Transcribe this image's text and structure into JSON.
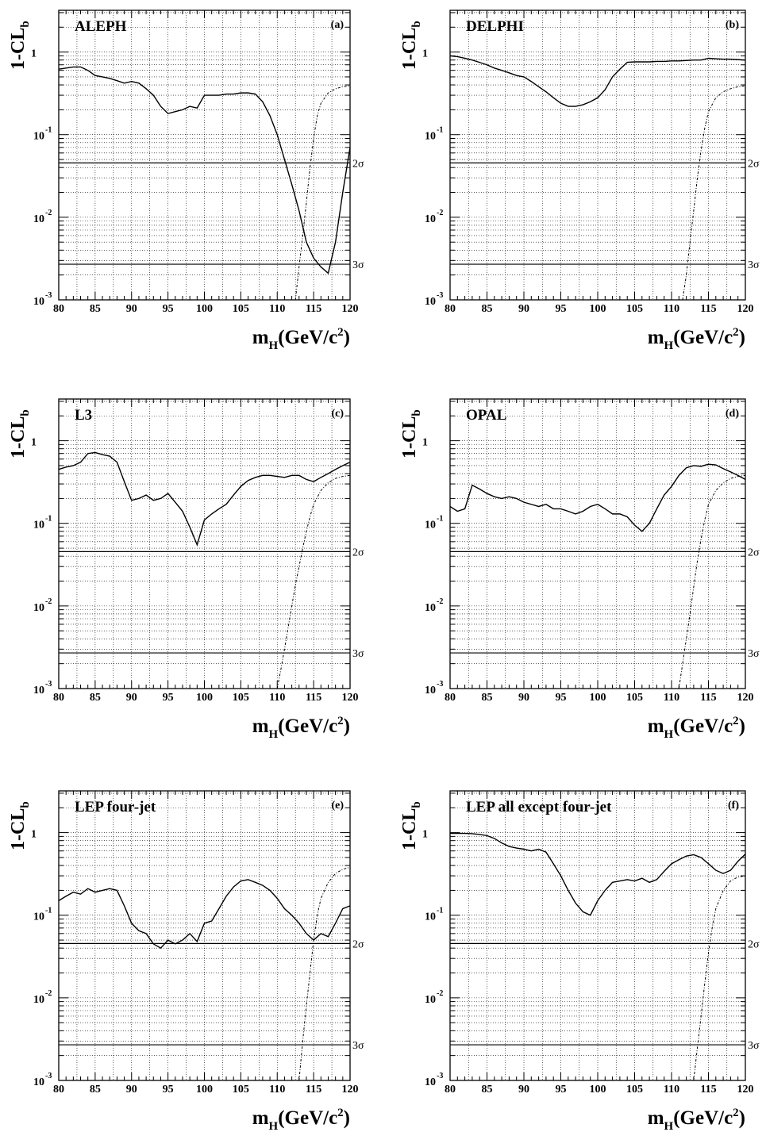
{
  "figure": {
    "shared_axes": {
      "xlim": [
        80,
        120
      ],
      "x_ticks": [
        80,
        85,
        90,
        95,
        100,
        105,
        110,
        115,
        120
      ],
      "x_tick_labels": [
        "80",
        "85",
        "90",
        "95",
        "100",
        "105",
        "110",
        "115",
        "120"
      ],
      "y_scale": "log",
      "ylim": [
        0.001,
        3.2
      ],
      "y_tick_labels": [
        {
          "value": 1,
          "base": "1",
          "exp": ""
        },
        {
          "value": 0.1,
          "base": "10",
          "exp": "-1"
        },
        {
          "value": 0.01,
          "base": "10",
          "exp": "-2"
        },
        {
          "value": 0.001,
          "base": "10",
          "exp": "-3"
        }
      ],
      "xlabel": {
        "main": "m",
        "sub": "H",
        "rest": "(GeV/c",
        "sup": "2",
        "end": ")"
      },
      "ylabel": {
        "main": "1-CL",
        "sub": "b"
      },
      "sigma_lines": [
        {
          "label": "2σ",
          "value": 0.0455
        },
        {
          "label": "3σ",
          "value": 0.0027
        }
      ]
    }
  },
  "chart_data": [
    {
      "type": "line",
      "title": "ALEPH",
      "panel_label": "(a)",
      "series": [
        {
          "style": "solid",
          "x": [
            80,
            81,
            82,
            83,
            84,
            85,
            86,
            87,
            88,
            89,
            90,
            91,
            92,
            93,
            94,
            95,
            96,
            97,
            98,
            99,
            100,
            101,
            102,
            103,
            104,
            105,
            106,
            107,
            108,
            109,
            110,
            111,
            112,
            113,
            114,
            115,
            116,
            117,
            118,
            119,
            120
          ],
          "y": [
            0.62,
            0.64,
            0.66,
            0.66,
            0.6,
            0.52,
            0.5,
            0.48,
            0.45,
            0.42,
            0.44,
            0.42,
            0.36,
            0.3,
            0.22,
            0.18,
            0.19,
            0.2,
            0.22,
            0.21,
            0.3,
            0.3,
            0.3,
            0.31,
            0.31,
            0.32,
            0.32,
            0.31,
            0.25,
            0.17,
            0.1,
            0.05,
            0.025,
            0.012,
            0.005,
            0.0032,
            0.0025,
            0.0021,
            0.005,
            0.02,
            0.07
          ]
        },
        {
          "style": "dotted",
          "x": [
            112.5,
            113,
            113.5,
            114,
            114.5,
            115,
            115.5,
            116,
            117,
            118,
            119,
            120
          ],
          "y": [
            0.001,
            0.0025,
            0.006,
            0.015,
            0.04,
            0.09,
            0.17,
            0.24,
            0.32,
            0.36,
            0.38,
            0.39
          ]
        }
      ]
    },
    {
      "type": "line",
      "title": "DELPHI",
      "panel_label": "(b)",
      "series": [
        {
          "style": "solid",
          "x": [
            80,
            81,
            82,
            83,
            84,
            85,
            86,
            87,
            88,
            89,
            90,
            91,
            92,
            93,
            94,
            95,
            96,
            97,
            98,
            99,
            100,
            101,
            102,
            103,
            104,
            105,
            106,
            107,
            108,
            109,
            110,
            111,
            112,
            113,
            114,
            115,
            116,
            117,
            118,
            119,
            120
          ],
          "y": [
            0.9,
            0.88,
            0.84,
            0.8,
            0.75,
            0.7,
            0.64,
            0.6,
            0.56,
            0.52,
            0.5,
            0.44,
            0.38,
            0.33,
            0.28,
            0.24,
            0.22,
            0.22,
            0.23,
            0.25,
            0.28,
            0.35,
            0.5,
            0.62,
            0.75,
            0.76,
            0.76,
            0.76,
            0.77,
            0.77,
            0.78,
            0.78,
            0.79,
            0.8,
            0.8,
            0.84,
            0.83,
            0.82,
            0.82,
            0.81,
            0.8
          ]
        },
        {
          "style": "dotted",
          "x": [
            111.5,
            112,
            112.5,
            113,
            113.5,
            114,
            114.5,
            115,
            116,
            117,
            118,
            119,
            120
          ],
          "y": [
            0.001,
            0.002,
            0.005,
            0.012,
            0.03,
            0.065,
            0.12,
            0.19,
            0.28,
            0.33,
            0.36,
            0.38,
            0.39
          ]
        }
      ]
    },
    {
      "type": "line",
      "title": "L3",
      "panel_label": "(c)",
      "series": [
        {
          "style": "solid",
          "x": [
            80,
            81,
            82,
            83,
            84,
            85,
            86,
            87,
            88,
            89,
            90,
            91,
            92,
            93,
            94,
            95,
            96,
            97,
            98,
            99,
            100,
            101,
            102,
            103,
            104,
            105,
            106,
            107,
            108,
            109,
            110,
            111,
            112,
            113,
            114,
            115,
            116,
            117,
            118,
            119,
            120
          ],
          "y": [
            0.45,
            0.48,
            0.5,
            0.55,
            0.7,
            0.72,
            0.68,
            0.65,
            0.55,
            0.32,
            0.19,
            0.2,
            0.22,
            0.19,
            0.2,
            0.23,
            0.18,
            0.14,
            0.09,
            0.055,
            0.11,
            0.13,
            0.15,
            0.17,
            0.22,
            0.28,
            0.33,
            0.36,
            0.38,
            0.38,
            0.37,
            0.36,
            0.38,
            0.38,
            0.34,
            0.32,
            0.36,
            0.4,
            0.45,
            0.5,
            0.55
          ]
        },
        {
          "style": "dotted",
          "x": [
            110,
            110.5,
            111,
            111.5,
            112,
            112.5,
            113,
            113.5,
            114,
            114.5,
            115,
            116,
            117,
            118,
            119,
            120
          ],
          "y": [
            0.001,
            0.0017,
            0.003,
            0.0055,
            0.01,
            0.018,
            0.03,
            0.05,
            0.08,
            0.12,
            0.17,
            0.25,
            0.31,
            0.35,
            0.37,
            0.38
          ]
        }
      ]
    },
    {
      "type": "line",
      "title": "OPAL",
      "panel_label": "(d)",
      "series": [
        {
          "style": "solid",
          "x": [
            80,
            81,
            82,
            83,
            84,
            85,
            86,
            87,
            88,
            89,
            90,
            91,
            92,
            93,
            94,
            95,
            96,
            97,
            98,
            99,
            100,
            101,
            102,
            103,
            104,
            105,
            106,
            107,
            108,
            109,
            110,
            111,
            112,
            113,
            114,
            115,
            116,
            117,
            118,
            119,
            120
          ],
          "y": [
            0.16,
            0.14,
            0.15,
            0.29,
            0.26,
            0.23,
            0.21,
            0.2,
            0.21,
            0.2,
            0.18,
            0.17,
            0.16,
            0.17,
            0.15,
            0.15,
            0.14,
            0.13,
            0.14,
            0.16,
            0.17,
            0.15,
            0.13,
            0.13,
            0.12,
            0.095,
            0.08,
            0.1,
            0.15,
            0.22,
            0.28,
            0.38,
            0.47,
            0.5,
            0.49,
            0.52,
            0.51,
            0.46,
            0.42,
            0.38,
            0.34
          ]
        },
        {
          "style": "dotted",
          "x": [
            111,
            111.5,
            112,
            112.5,
            113,
            113.5,
            114,
            114.5,
            115,
            116,
            117,
            118,
            119,
            120
          ],
          "y": [
            0.001,
            0.002,
            0.004,
            0.008,
            0.017,
            0.035,
            0.065,
            0.11,
            0.17,
            0.25,
            0.31,
            0.35,
            0.37,
            0.38
          ]
        }
      ]
    },
    {
      "type": "line",
      "title": "LEP four-jet",
      "panel_label": "(e)",
      "series": [
        {
          "style": "solid",
          "x": [
            80,
            81,
            82,
            83,
            84,
            85,
            86,
            87,
            88,
            89,
            90,
            91,
            92,
            93,
            94,
            95,
            96,
            97,
            98,
            99,
            100,
            101,
            102,
            103,
            104,
            105,
            106,
            107,
            108,
            109,
            110,
            111,
            112,
            113,
            114,
            115,
            116,
            117,
            118,
            119,
            120
          ],
          "y": [
            0.15,
            0.17,
            0.19,
            0.18,
            0.21,
            0.19,
            0.2,
            0.21,
            0.2,
            0.13,
            0.08,
            0.065,
            0.06,
            0.045,
            0.04,
            0.05,
            0.045,
            0.05,
            0.06,
            0.048,
            0.08,
            0.085,
            0.12,
            0.17,
            0.22,
            0.26,
            0.27,
            0.25,
            0.23,
            0.2,
            0.16,
            0.12,
            0.1,
            0.08,
            0.06,
            0.05,
            0.06,
            0.055,
            0.08,
            0.12,
            0.13
          ]
        },
        {
          "style": "dotted",
          "x": [
            113,
            113.5,
            114,
            114.5,
            115,
            115.5,
            116,
            117,
            118,
            119,
            120
          ],
          "y": [
            0.001,
            0.003,
            0.008,
            0.02,
            0.05,
            0.1,
            0.16,
            0.25,
            0.32,
            0.36,
            0.38
          ]
        }
      ]
    },
    {
      "type": "line",
      "title": "LEP all except four-jet",
      "panel_label": "(f)",
      "series": [
        {
          "style": "solid",
          "x": [
            80,
            81,
            82,
            83,
            84,
            85,
            86,
            87,
            88,
            89,
            90,
            91,
            92,
            93,
            94,
            95,
            96,
            97,
            98,
            99,
            100,
            101,
            102,
            103,
            104,
            105,
            106,
            107,
            108,
            109,
            110,
            111,
            112,
            113,
            114,
            115,
            116,
            117,
            118,
            119,
            120
          ],
          "y": [
            0.98,
            0.98,
            0.98,
            0.97,
            0.95,
            0.92,
            0.85,
            0.75,
            0.68,
            0.65,
            0.63,
            0.6,
            0.63,
            0.58,
            0.42,
            0.3,
            0.2,
            0.14,
            0.11,
            0.1,
            0.15,
            0.2,
            0.25,
            0.26,
            0.27,
            0.26,
            0.28,
            0.25,
            0.27,
            0.34,
            0.42,
            0.47,
            0.52,
            0.54,
            0.5,
            0.42,
            0.35,
            0.32,
            0.35,
            0.45,
            0.55
          ]
        },
        {
          "style": "dotted",
          "x": [
            113,
            113.5,
            114,
            114.5,
            115,
            115.5,
            116,
            117,
            118,
            119,
            120
          ],
          "y": [
            0.001,
            0.0025,
            0.006,
            0.015,
            0.035,
            0.07,
            0.12,
            0.2,
            0.26,
            0.29,
            0.3
          ]
        }
      ]
    }
  ]
}
